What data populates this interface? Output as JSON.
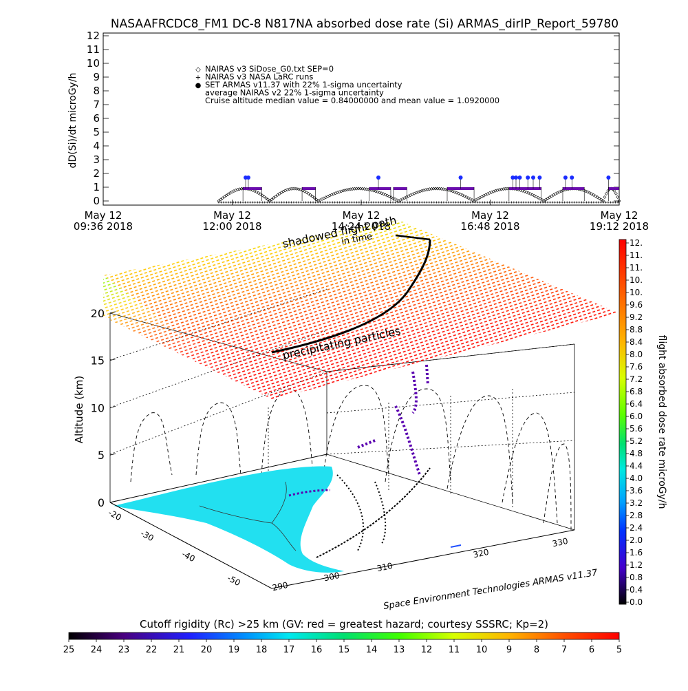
{
  "title": "NASAAFRCDC8_FM1 DC-8   N817NA absorbed dose rate (Si) ARMAS_dirIP_Report_59780",
  "top_plot": {
    "ylabel": "dD(Si)/dt microGy/h",
    "yticks": [
      "0",
      "1",
      "2",
      "3",
      "4",
      "5",
      "6",
      "7",
      "8",
      "9",
      "10",
      "11",
      "12"
    ],
    "xticks": [
      {
        "line1": "May 12",
        "line2": "09:36 2018"
      },
      {
        "line1": "May 12",
        "line2": "12:00 2018"
      },
      {
        "line1": "May 12",
        "line2": "14:24 2018"
      },
      {
        "line1": "May 12",
        "line2": "16:48 2018"
      },
      {
        "line1": "May 12",
        "line2": "19:12 2018"
      }
    ],
    "legend": [
      {
        "symbol": "◇",
        "text": "NAIRAS v3 SiDose_G0.txt SEP=0"
      },
      {
        "symbol": "+",
        "text": "NAIRAS v3 NASA LaRC runs"
      },
      {
        "symbol": "●",
        "text": "SET ARMAS v11.37 with 22% 1-sigma uncertainty"
      },
      {
        "symbol": "",
        "text": "average NAIRAS v2 22% 1-sigma uncertainty"
      },
      {
        "symbol": "",
        "text": "Cruise altitude median value = 0.84000000 and mean value = 1.0920000"
      }
    ]
  },
  "globe_plot": {
    "ylabel": "Altitude (km)",
    "zticks": [
      "0",
      "5",
      "10",
      "15",
      "20"
    ],
    "lat_ticks": [
      "-20",
      "-30",
      "-40",
      "-50"
    ],
    "lon_ticks": [
      "290",
      "300",
      "310",
      "320",
      "330"
    ],
    "annotations": [
      "shadowed flight path",
      "in time",
      "precipitating particles"
    ],
    "credit": "Space Environment Technologies ARMAS v11.37"
  },
  "right_colorbar": {
    "label": "flight absorbed dose rate microGy/h",
    "ticks": [
      "12.",
      "11.",
      "11.",
      "10.",
      "10.",
      "9.6",
      "9.2",
      "8.8",
      "8.4",
      "8.0",
      "7.6",
      "7.2",
      "6.8",
      "6.4",
      "6.0",
      "5.6",
      "5.2",
      "4.8",
      "4.4",
      "4.0",
      "3.6",
      "3.2",
      "2.8",
      "2.4",
      "2.0",
      "1.6",
      "1.2",
      "0.8",
      "0.4",
      "0.0"
    ]
  },
  "bottom_colorbar": {
    "label": "Cutoff rigidity (Rc) >25 km (GV: red = greatest hazard; courtesy SSSRC; Kp=2)",
    "ticks": [
      "25",
      "24",
      "23",
      "22",
      "21",
      "20",
      "19",
      "18",
      "17",
      "16",
      "15",
      "14",
      "13",
      "12",
      "11",
      "10",
      "9",
      "8",
      "7",
      "6",
      "5"
    ]
  },
  "colors": {
    "armas": "#1a2cff",
    "larc": "#6a0dad",
    "land": "#22e0f0"
  },
  "chart_data": [
    {
      "type": "scatter",
      "title": "NASAAFRCDC8_FM1 DC-8   N817NA absorbed dose rate (Si) ARMAS_dirIP_Report_59780",
      "ylabel": "dD(Si)/dt microGy/h",
      "ylim": [
        0,
        12
      ],
      "xlim_hours": [
        9.6,
        19.2
      ],
      "grid": false,
      "legend_position": "top-center",
      "series": [
        {
          "name": "SET ARMAS v11.37 with 22% 1-sigma uncertainty",
          "x": [
            12.25,
            12.3,
            14.72,
            16.25,
            17.22,
            17.28,
            17.35,
            17.5,
            17.6,
            17.72,
            18.2,
            18.32,
            19.0
          ],
          "y": [
            1.7,
            1.7,
            1.7,
            1.7,
            1.7,
            1.7,
            1.7,
            1.7,
            1.7,
            1.7,
            1.7,
            1.7,
            1.7
          ]
        },
        {
          "name": "NAIRAS v3 NASA LaRC runs",
          "segments": [
            [
              12.2,
              12.55,
              0.9
            ],
            [
              13.3,
              13.55,
              0.9
            ],
            [
              14.55,
              14.95,
              0.9
            ],
            [
              15.0,
              15.25,
              0.9
            ],
            [
              16.0,
              16.5,
              0.9
            ],
            [
              17.15,
              17.75,
              0.9
            ],
            [
              18.15,
              18.55,
              0.9
            ],
            [
              19.0,
              19.2,
              0.9
            ]
          ]
        },
        {
          "name": "NAIRAS v3 SiDose_G0.txt SEP=0",
          "humps": [
            [
              11.75,
              12.7,
              0.9
            ],
            [
              12.7,
              13.6,
              0.9
            ],
            [
              13.6,
              15.1,
              0.9
            ],
            [
              15.1,
              16.5,
              0.9
            ],
            [
              16.5,
              17.8,
              0.9
            ],
            [
              17.8,
              18.9,
              0.9
            ],
            [
              18.9,
              19.2,
              0.9
            ]
          ]
        }
      ],
      "cruise_median": 0.84,
      "cruise_mean": 1.092
    }
  ]
}
